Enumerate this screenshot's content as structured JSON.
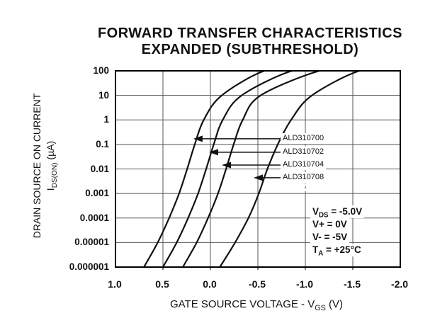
{
  "title": {
    "line1": "FORWARD TRANSFER CHARACTERISTICS",
    "line2": "EXPANDED (SUBTHRESHOLD)"
  },
  "y_axis": {
    "title_line1": "DRAIN SOURCE ON CURRENT",
    "title_pre": "I",
    "title_sub": "DS(ON)",
    "title_post": " (µA)",
    "tick_labels": [
      "100",
      "10",
      "1",
      "0.1",
      "0.01",
      "0.001",
      "0.0001",
      "0.00001",
      "0.000001"
    ]
  },
  "x_axis": {
    "title_pre": "GATE SOURCE VOLTAGE - V",
    "title_sub": "GS",
    "title_post": " (V)",
    "tick_labels": [
      "1.0",
      "0.5",
      "0.0",
      "-0.5",
      "-1.0",
      "-1.5",
      "-2.0"
    ]
  },
  "conditions": [
    {
      "pre": "V",
      "sub": "DS",
      "post": " = -5.0V"
    },
    {
      "pre": "V+",
      "sub": "",
      "post": " = 0V"
    },
    {
      "pre": "V-",
      "sub": "",
      "post": " = -5V"
    },
    {
      "pre": "T",
      "sub": "A",
      "post": " = +25°C"
    }
  ],
  "colors": {
    "background": "#ffffff",
    "frame": "#000000",
    "grid": "#555555",
    "curve": "#111111",
    "text": "#111111"
  },
  "chart_data": {
    "type": "line",
    "title": "FORWARD TRANSFER CHARACTERISTICS EXPANDED (SUBTHRESHOLD)",
    "xlabel": "GATE SOURCE VOLTAGE - VGS (V)",
    "ylabel": "DRAIN SOURCE ON CURRENT IDS(ON) (uA)",
    "x_range_V": [
      1.0,
      -2.0
    ],
    "x_ticks_V": [
      1.0,
      0.5,
      0.0,
      -0.5,
      -1.0,
      -1.5,
      -2.0
    ],
    "y_scale": "log",
    "y_range_uA": [
      1e-06,
      100
    ],
    "grid": true,
    "dashed_gridline_at_V": -1.0,
    "ids_uA": [
      1e-06,
      1e-05,
      0.0001,
      0.001,
      0.01,
      0.1,
      1,
      10,
      100
    ],
    "series": [
      {
        "name": "ALD310700",
        "vgs_V": [
          0.7,
          0.555,
          0.435,
          0.33,
          0.245,
          0.165,
          0.07,
          -0.12,
          -0.57
        ]
      },
      {
        "name": "ALD310702",
        "vgs_V": [
          0.5,
          0.355,
          0.235,
          0.13,
          0.045,
          -0.035,
          -0.13,
          -0.33,
          -0.86
        ]
      },
      {
        "name": "ALD310704",
        "vgs_V": [
          0.29,
          0.145,
          0.025,
          -0.08,
          -0.165,
          -0.245,
          -0.34,
          -0.53,
          -1.15
        ]
      },
      {
        "name": "ALD310708",
        "vgs_V": [
          -0.1,
          -0.26,
          -0.4,
          -0.51,
          -0.6,
          -0.71,
          -0.85,
          -1.07,
          -1.57
        ]
      }
    ],
    "annotations": [
      {
        "label": "ALD310700",
        "arrow_tip": {
          "vgs_V": 0.18,
          "ids_uA": 0.17
        }
      },
      {
        "label": "ALD310702",
        "arrow_tip": {
          "vgs_V": 0.015,
          "ids_uA": 0.048
        }
      },
      {
        "label": "ALD310704",
        "arrow_tip": {
          "vgs_V": -0.12,
          "ids_uA": 0.0144
        }
      },
      {
        "label": "ALD310708",
        "arrow_tip": {
          "vgs_V": -0.455,
          "ids_uA": 0.0044
        }
      }
    ],
    "conditions_text": [
      "VDS = -5.0V",
      "V+ = 0V",
      "V- = -5V",
      "TA = +25°C"
    ]
  }
}
